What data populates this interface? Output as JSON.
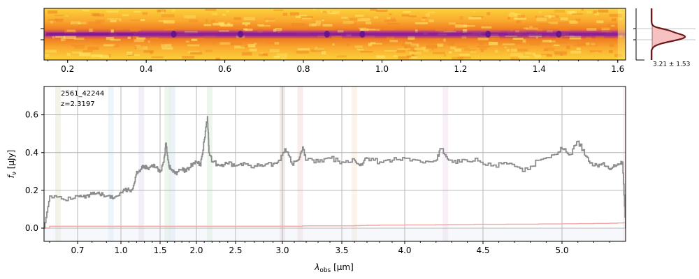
{
  "figure": {
    "object_id": "2561_42244",
    "redshift_label": "z=2.3197",
    "trace_label": "3.21 ± 1.53"
  },
  "colors": {
    "flux": "#8c8c8c",
    "error": "#f4a6a6",
    "grid": "#b0b0b0",
    "profile_line": "#6b1a1a",
    "profile_fill": "#f7c1c1",
    "heat_low": "#fcd33a",
    "heat_mid": "#f07f22",
    "heat_high": "#8a1fa0"
  },
  "chart_data": [
    {
      "type": "heatmap",
      "name": "2d-spectrum",
      "xlim": [
        0.14,
        1.62
      ],
      "xticks": [
        0.2,
        0.4,
        0.6,
        0.8,
        1.0,
        1.2,
        1.4,
        1.6
      ],
      "xtick_labels": [
        "0.2",
        "0.4",
        "0.6",
        "0.8",
        "1.0",
        "1.2",
        "1.4",
        "1.6"
      ],
      "trace_row": 0.5
    },
    {
      "type": "line",
      "name": "spatial-profile",
      "annotation": "3.21 ± 1.53",
      "peak_position": 0.55,
      "width": 0.12
    },
    {
      "type": "line",
      "name": "1d-spectrum",
      "xlabel_main": "λ",
      "xlabel_sub": "obs",
      "xlabel_unit": "[μm]",
      "ylabel": "f_ν [μJy]",
      "ylim": [
        -0.07,
        0.75
      ],
      "yticks": [
        0.0,
        0.2,
        0.4,
        0.6
      ],
      "ytick_labels": [
        "0.0",
        "0.2",
        "0.4",
        "0.6"
      ],
      "xticks": [
        0.7,
        1.0,
        1.5,
        2.0,
        2.5,
        3.0,
        3.5,
        4.0,
        4.5,
        5.0
      ],
      "xtick_labels": [
        "0.7",
        "1.0",
        "1.5",
        "2.0",
        "2.5",
        "3.0",
        "3.5",
        "4.0",
        "4.5",
        "5.0"
      ],
      "x_range": [
        0.58,
        5.4
      ],
      "flux_x": [
        0.58,
        0.6,
        0.65,
        0.7,
        0.75,
        0.8,
        0.85,
        0.9,
        0.95,
        1.0,
        1.05,
        1.1,
        1.15,
        1.2,
        1.25,
        1.3,
        1.35,
        1.4,
        1.45,
        1.5,
        1.55,
        1.58,
        1.62,
        1.65,
        1.7,
        1.75,
        1.8,
        1.85,
        1.9,
        1.95,
        2.0,
        2.05,
        2.1,
        2.14,
        2.16,
        2.2,
        2.3,
        2.4,
        2.5,
        2.6,
        2.7,
        2.8,
        2.9,
        2.97,
        3.02,
        3.08,
        3.13,
        3.17,
        3.2,
        3.3,
        3.4,
        3.5,
        3.6,
        3.65,
        3.7,
        3.8,
        3.9,
        4.0,
        4.1,
        4.2,
        4.23,
        4.28,
        4.35,
        4.45,
        4.55,
        4.65,
        4.75,
        4.85,
        4.95,
        5.0,
        5.05,
        5.1,
        5.15,
        5.2,
        5.25,
        5.3,
        5.35,
        5.38,
        5.4
      ],
      "flux_y": [
        0.0,
        0.17,
        0.15,
        0.17,
        0.16,
        0.18,
        0.18,
        0.17,
        0.16,
        0.19,
        0.2,
        0.2,
        0.21,
        0.3,
        0.31,
        0.33,
        0.31,
        0.33,
        0.32,
        0.3,
        0.35,
        0.45,
        0.33,
        0.31,
        0.29,
        0.3,
        0.31,
        0.3,
        0.32,
        0.34,
        0.35,
        0.33,
        0.47,
        0.59,
        0.4,
        0.35,
        0.33,
        0.34,
        0.33,
        0.34,
        0.33,
        0.33,
        0.34,
        0.36,
        0.42,
        0.34,
        0.36,
        0.43,
        0.36,
        0.35,
        0.37,
        0.35,
        0.36,
        0.34,
        0.37,
        0.35,
        0.36,
        0.37,
        0.35,
        0.36,
        0.42,
        0.36,
        0.35,
        0.37,
        0.33,
        0.34,
        0.3,
        0.36,
        0.39,
        0.42,
        0.39,
        0.46,
        0.38,
        0.33,
        0.34,
        0.31,
        0.34,
        0.35,
        0.0
      ],
      "error_y": [
        0.0,
        0.01,
        0.01,
        0.01,
        0.01,
        0.01,
        0.01,
        0.01,
        0.01,
        0.01,
        0.01,
        0.01,
        0.01,
        0.01,
        0.01,
        0.01,
        0.01,
        0.01,
        0.01,
        0.01,
        0.01,
        0.01,
        0.01,
        0.01,
        0.01,
        0.01,
        0.01,
        0.01,
        0.01,
        0.01,
        0.01,
        0.01,
        0.01,
        0.01,
        0.01,
        0.01,
        0.01,
        0.01,
        0.01,
        0.01,
        0.01,
        0.01,
        0.01,
        0.01,
        0.01,
        0.01,
        0.01,
        0.012,
        0.012,
        0.012,
        0.012,
        0.012,
        0.013,
        0.014,
        0.015,
        0.016,
        0.016,
        0.017,
        0.017,
        0.018,
        0.018,
        0.019,
        0.019,
        0.02,
        0.02,
        0.021,
        0.021,
        0.022,
        0.022,
        0.023,
        0.023,
        0.024,
        0.024,
        0.025,
        0.025,
        0.026,
        0.027,
        0.028,
        0.0
      ],
      "line_bands": [
        {
          "x": 0.63,
          "color": "#c8c8a0"
        },
        {
          "x": 0.93,
          "color": "#a8d8e8"
        },
        {
          "x": 1.26,
          "color": "#c8b8e0"
        },
        {
          "x": 1.6,
          "color": "#a8d8a8"
        },
        {
          "x": 1.67,
          "color": "#a8c8e0"
        },
        {
          "x": 2.17,
          "color": "#a8d8a8"
        },
        {
          "x": 3.0,
          "color": "#c8a0a0"
        },
        {
          "x": 3.15,
          "color": "#e0a8a8"
        },
        {
          "x": 3.6,
          "color": "#f0c8a0"
        },
        {
          "x": 4.26,
          "color": "#e0b8e0"
        },
        {
          "x": 5.4,
          "color": "#f0b0b0"
        }
      ]
    }
  ]
}
